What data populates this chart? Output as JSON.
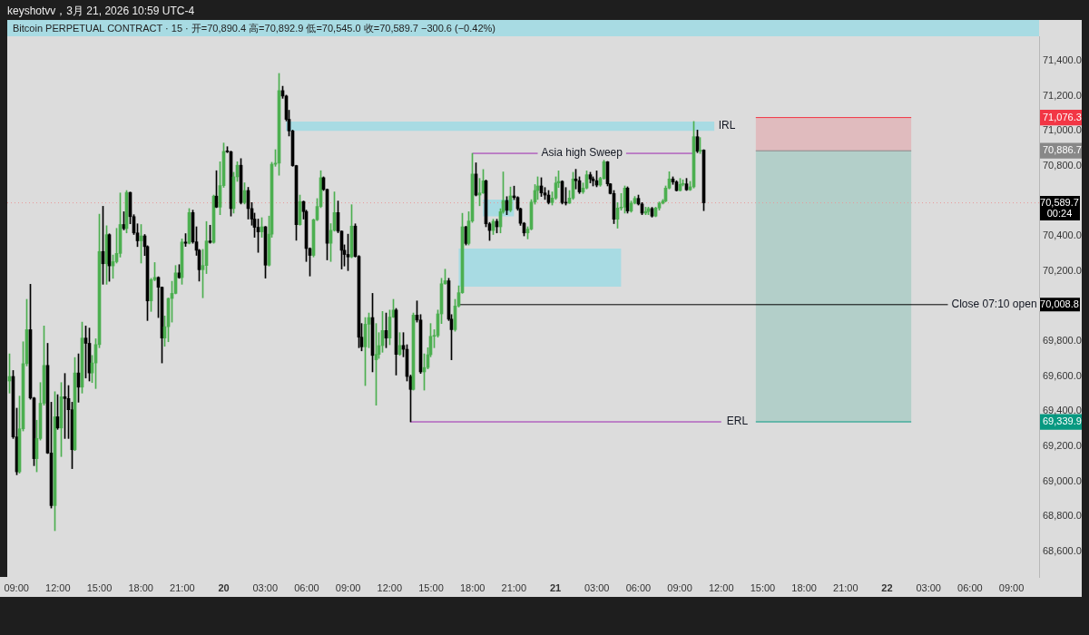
{
  "chart_data": {
    "type": "candlestick",
    "title": "Bitcoin PERPETUAL CONTRACT · 15 · 开=70,890.4  高=70,892.9  低=70,545.0  收=70,589.7  −300.6 (−0.42%)",
    "subtitle": "keyshotvv，3月 21, 2026 10:59 UTC-4",
    "x": [
      "2026-03-19T08:30",
      "2026-03-19T08:45",
      "2026-03-19T09:00",
      "2026-03-19T09:15",
      "2026-03-19T09:30",
      "2026-03-19T09:45",
      "2026-03-19T10:00",
      "2026-03-19T10:15",
      "2026-03-19T10:30",
      "2026-03-19T10:45",
      "2026-03-19T11:00",
      "2026-03-19T11:15",
      "2026-03-19T11:30",
      "2026-03-19T11:45",
      "2026-03-19T12:00",
      "2026-03-19T12:15",
      "2026-03-19T12:30",
      "2026-03-19T12:45",
      "2026-03-19T13:00",
      "2026-03-19T13:15",
      "2026-03-19T13:30",
      "2026-03-19T13:45",
      "2026-03-19T14:00",
      "2026-03-19T14:15",
      "2026-03-19T14:30",
      "2026-03-19T14:45",
      "2026-03-19T15:00",
      "2026-03-19T15:15",
      "2026-03-19T15:30",
      "2026-03-19T15:45",
      "2026-03-19T16:00",
      "2026-03-19T16:15",
      "2026-03-19T16:30",
      "2026-03-19T16:45",
      "2026-03-19T17:00",
      "2026-03-19T17:15",
      "2026-03-19T17:30",
      "2026-03-19T17:45",
      "2026-03-19T18:00",
      "2026-03-19T18:15",
      "2026-03-19T18:30",
      "2026-03-19T18:45",
      "2026-03-19T19:00",
      "2026-03-19T19:15",
      "2026-03-19T19:30",
      "2026-03-19T19:45",
      "2026-03-19T20:00",
      "2026-03-19T20:15",
      "2026-03-19T20:30",
      "2026-03-19T20:45",
      "2026-03-19T21:00",
      "2026-03-19T21:15",
      "2026-03-19T21:30",
      "2026-03-19T21:45",
      "2026-03-19T22:00",
      "2026-03-19T22:15",
      "2026-03-19T22:30",
      "2026-03-19T22:45",
      "2026-03-19T23:00",
      "2026-03-19T23:15",
      "2026-03-19T23:30",
      "2026-03-19T23:45",
      "2026-03-20T00:00",
      "2026-03-20T00:15",
      "2026-03-20T00:30",
      "2026-03-20T00:45",
      "2026-03-20T01:00",
      "2026-03-20T01:15",
      "2026-03-20T01:30",
      "2026-03-20T01:45",
      "2026-03-20T02:00",
      "2026-03-20T02:15",
      "2026-03-20T02:30",
      "2026-03-20T02:45",
      "2026-03-20T03:00",
      "2026-03-20T03:15",
      "2026-03-20T03:30",
      "2026-03-20T03:45",
      "2026-03-20T04:00",
      "2026-03-20T04:15",
      "2026-03-20T04:30",
      "2026-03-20T04:45",
      "2026-03-20T05:00",
      "2026-03-20T05:15",
      "2026-03-20T05:30",
      "2026-03-20T05:45",
      "2026-03-20T06:00",
      "2026-03-20T06:15",
      "2026-03-20T06:30",
      "2026-03-20T06:45",
      "2026-03-20T07:00",
      "2026-03-20T07:15",
      "2026-03-20T07:30",
      "2026-03-20T07:45",
      "2026-03-20T08:00",
      "2026-03-20T08:15",
      "2026-03-20T08:30",
      "2026-03-20T08:45",
      "2026-03-20T09:00",
      "2026-03-20T09:15",
      "2026-03-20T09:30",
      "2026-03-20T09:45",
      "2026-03-20T10:00",
      "2026-03-20T10:15",
      "2026-03-20T10:30",
      "2026-03-20T10:45",
      "2026-03-20T11:00",
      "2026-03-20T11:15",
      "2026-03-20T11:30",
      "2026-03-20T11:45",
      "2026-03-20T12:00",
      "2026-03-20T12:15",
      "2026-03-20T12:30",
      "2026-03-20T12:45",
      "2026-03-20T13:00",
      "2026-03-20T13:15",
      "2026-03-20T13:30",
      "2026-03-20T13:45",
      "2026-03-20T14:00",
      "2026-03-20T14:15",
      "2026-03-20T14:30",
      "2026-03-20T14:45",
      "2026-03-20T15:00",
      "2026-03-20T15:15",
      "2026-03-20T15:30",
      "2026-03-20T15:45",
      "2026-03-20T16:00",
      "2026-03-20T16:15",
      "2026-03-20T16:30",
      "2026-03-20T16:45",
      "2026-03-20T17:00",
      "2026-03-20T17:15",
      "2026-03-20T17:30",
      "2026-03-20T17:45",
      "2026-03-20T18:00",
      "2026-03-20T18:15",
      "2026-03-20T18:30",
      "2026-03-20T18:45",
      "2026-03-20T19:00",
      "2026-03-20T19:15",
      "2026-03-20T19:30",
      "2026-03-20T19:45",
      "2026-03-20T20:00",
      "2026-03-20T20:15",
      "2026-03-20T20:30",
      "2026-03-20T20:45",
      "2026-03-20T21:00",
      "2026-03-20T21:15",
      "2026-03-20T21:30",
      "2026-03-20T21:45",
      "2026-03-20T22:00",
      "2026-03-20T22:15",
      "2026-03-20T22:30",
      "2026-03-20T22:45",
      "2026-03-20T23:00",
      "2026-03-20T23:15",
      "2026-03-20T23:30",
      "2026-03-20T23:45",
      "2026-03-21T00:00",
      "2026-03-21T00:15",
      "2026-03-21T00:30",
      "2026-03-21T00:45",
      "2026-03-21T01:00",
      "2026-03-21T01:15",
      "2026-03-21T01:30",
      "2026-03-21T01:45",
      "2026-03-21T02:00",
      "2026-03-21T02:15",
      "2026-03-21T02:30",
      "2026-03-21T02:45",
      "2026-03-21T03:00",
      "2026-03-21T03:15",
      "2026-03-21T03:30",
      "2026-03-21T03:45",
      "2026-03-21T04:00",
      "2026-03-21T04:15",
      "2026-03-21T04:30",
      "2026-03-21T04:45",
      "2026-03-21T05:00",
      "2026-03-21T05:15",
      "2026-03-21T05:30",
      "2026-03-21T05:45",
      "2026-03-21T06:00",
      "2026-03-21T06:15",
      "2026-03-21T06:30",
      "2026-03-21T06:45",
      "2026-03-21T07:00",
      "2026-03-21T07:15",
      "2026-03-21T07:30",
      "2026-03-21T07:45",
      "2026-03-21T08:00",
      "2026-03-21T08:15",
      "2026-03-21T08:30",
      "2026-03-21T08:45",
      "2026-03-21T09:00",
      "2026-03-21T09:15",
      "2026-03-21T09:30",
      "2026-03-21T09:45",
      "2026-03-21T10:00",
      "2026-03-21T10:15",
      "2026-03-21T10:30",
      "2026-03-21T10:45"
    ],
    "ohlc": [
      [
        69573,
        69728,
        69504,
        69599
      ],
      [
        69599,
        69633,
        69245,
        69254
      ],
      [
        69254,
        69418,
        69038,
        69055
      ],
      [
        69055,
        69487,
        69047,
        69300
      ],
      [
        69300,
        69797,
        69288,
        69672
      ],
      [
        69672,
        70039,
        69659,
        69866
      ],
      [
        69866,
        70125,
        69469,
        69476
      ],
      [
        69476,
        69480,
        69090,
        69130
      ],
      [
        69130,
        69349,
        69055,
        69245
      ],
      [
        69245,
        69564,
        69236,
        69446
      ],
      [
        69446,
        69887,
        69435,
        69662
      ],
      [
        69662,
        69788,
        69159,
        69162
      ],
      [
        69162,
        69452,
        68848,
        68862
      ],
      [
        68862,
        69512,
        68719,
        69369
      ],
      [
        69369,
        69495,
        69297,
        69305
      ],
      [
        69305,
        69564,
        69142,
        69483
      ],
      [
        69483,
        69616,
        69245,
        69473
      ],
      [
        69473,
        69547,
        69245,
        69409
      ],
      [
        69409,
        69452,
        69073,
        69181
      ],
      [
        69181,
        69707,
        69176,
        69619
      ],
      [
        69619,
        69728,
        69452,
        69538
      ],
      [
        69538,
        69909,
        69504,
        69818
      ],
      [
        69818,
        69887,
        69590,
        69788
      ],
      [
        69788,
        69875,
        69573,
        69619
      ],
      [
        69619,
        69719,
        69564,
        69676
      ],
      [
        69676,
        69814,
        69530,
        69781
      ],
      [
        69781,
        70525,
        69763,
        70312
      ],
      [
        70312,
        70570,
        70125,
        70242
      ],
      [
        70242,
        70459,
        70125,
        70408
      ],
      [
        70408,
        70413,
        70142,
        70230
      ],
      [
        70230,
        70292,
        70159,
        70254
      ],
      [
        70254,
        70444,
        70246,
        70301
      ],
      [
        70301,
        70646,
        70280,
        70466
      ],
      [
        70466,
        70539,
        70435,
        70443
      ],
      [
        70443,
        70660,
        70418,
        70649
      ],
      [
        70649,
        70651,
        70470,
        70511
      ],
      [
        70511,
        70522,
        70409,
        70418
      ],
      [
        70418,
        70470,
        70340,
        70373
      ],
      [
        70373,
        70466,
        70246,
        70401
      ],
      [
        70401,
        70409,
        70289,
        70340
      ],
      [
        70340,
        70345,
        69918,
        70030
      ],
      [
        70030,
        70159,
        69970,
        70151
      ],
      [
        70151,
        70249,
        70145,
        70164
      ],
      [
        70164,
        70168,
        69935,
        70108
      ],
      [
        70108,
        70110,
        69676,
        69818
      ],
      [
        69818,
        69944,
        69771,
        69883
      ],
      [
        69883,
        70047,
        69797,
        70044
      ],
      [
        70044,
        70142,
        69909,
        70073
      ],
      [
        70073,
        70232,
        70070,
        70190
      ],
      [
        70190,
        70237,
        70159,
        70163
      ],
      [
        70163,
        70384,
        70125,
        70366
      ],
      [
        70366,
        70414,
        70341,
        70359
      ],
      [
        70359,
        70557,
        70355,
        70534
      ],
      [
        70534,
        70548,
        70359,
        70367
      ],
      [
        70367,
        70453,
        70290,
        70319
      ],
      [
        70319,
        70324,
        70143,
        70208
      ],
      [
        70208,
        70324,
        70048,
        70232
      ],
      [
        70232,
        70483,
        70186,
        70372
      ],
      [
        70372,
        70462,
        70359,
        70364
      ],
      [
        70364,
        70634,
        70359,
        70628
      ],
      [
        70628,
        70773,
        70562,
        70565
      ],
      [
        70565,
        70824,
        70522,
        70688
      ],
      [
        70688,
        70931,
        70678,
        70883
      ],
      [
        70883,
        70910,
        70876,
        70881
      ],
      [
        70881,
        70885,
        70514,
        70557
      ],
      [
        70557,
        70764,
        70531,
        70738
      ],
      [
        70738,
        70824,
        70712,
        70804
      ],
      [
        70804,
        70842,
        70583,
        70591
      ],
      [
        70591,
        70704,
        70583,
        70660
      ],
      [
        70660,
        70678,
        70497,
        70557
      ],
      [
        70557,
        70591,
        70462,
        70497
      ],
      [
        70497,
        70531,
        70393,
        70450
      ],
      [
        70450,
        70497,
        70307,
        70424
      ],
      [
        70424,
        70505,
        70393,
        70453
      ],
      [
        70453,
        70455,
        70160,
        70234
      ],
      [
        70234,
        70514,
        70229,
        70411
      ],
      [
        70411,
        70821,
        70393,
        70810
      ],
      [
        70810,
        70893,
        70798,
        70816
      ],
      [
        70816,
        71328,
        70747,
        71230
      ],
      [
        71230,
        71255,
        71186,
        71199
      ],
      [
        71199,
        71204,
        71057,
        71066
      ],
      [
        71066,
        71118,
        70971,
        71000
      ],
      [
        71000,
        71005,
        70798,
        70802
      ],
      [
        70802,
        70804,
        70376,
        70465
      ],
      [
        70465,
        70634,
        70462,
        70597
      ],
      [
        70597,
        70600,
        70497,
        70540
      ],
      [
        70540,
        70548,
        70255,
        70329
      ],
      [
        70329,
        70333,
        70172,
        70290
      ],
      [
        70290,
        70497,
        70281,
        70493
      ],
      [
        70493,
        70614,
        70488,
        70569
      ],
      [
        70569,
        70773,
        70562,
        70733
      ],
      [
        70733,
        70738,
        70660,
        70666
      ],
      [
        70666,
        70669,
        70264,
        70359
      ],
      [
        70359,
        70471,
        70255,
        70433
      ],
      [
        70433,
        70652,
        70428,
        70534
      ],
      [
        70534,
        70600,
        70419,
        70428
      ],
      [
        70428,
        70430,
        70212,
        70319
      ],
      [
        70319,
        70350,
        70229,
        70295
      ],
      [
        70295,
        70411,
        70203,
        70281
      ],
      [
        70281,
        70579,
        70276,
        70457
      ],
      [
        70457,
        70470,
        70280,
        70284
      ],
      [
        70284,
        70289,
        69763,
        69823
      ],
      [
        69823,
        69901,
        69745,
        69768
      ],
      [
        69768,
        69935,
        69547,
        69897
      ],
      [
        69897,
        69961,
        69763,
        69935
      ],
      [
        69935,
        70073,
        69625,
        69719
      ],
      [
        69694,
        69901,
        69435,
        69725
      ],
      [
        69725,
        69849,
        69702,
        69775
      ],
      [
        69775,
        69970,
        69737,
        69861
      ],
      [
        69861,
        69961,
        69763,
        69818
      ],
      [
        69818,
        69978,
        69780,
        69938
      ],
      [
        69938,
        70039,
        69935,
        69978
      ],
      [
        69978,
        69987,
        69607,
        69725
      ],
      [
        69725,
        69849,
        69719,
        69776
      ],
      [
        69776,
        69849,
        69711,
        69754
      ],
      [
        69754,
        69780,
        69573,
        69599
      ],
      [
        69599,
        69607,
        69340,
        69525
      ],
      [
        69525,
        69961,
        69521,
        69949
      ],
      [
        69949,
        70030,
        69909,
        69921
      ],
      [
        69921,
        69952,
        69616,
        69625
      ],
      [
        69625,
        69728,
        69521,
        69650
      ],
      [
        69650,
        69763,
        69642,
        69723
      ],
      [
        69723,
        69901,
        69711,
        69828
      ],
      [
        69828,
        69866,
        69763,
        69832
      ],
      [
        69832,
        69978,
        69823,
        69956
      ],
      [
        69956,
        70159,
        69901,
        70128
      ],
      [
        70128,
        70211,
        70125,
        70145
      ],
      [
        70145,
        70159,
        69918,
        69926
      ],
      [
        69926,
        69952,
        69694,
        69866
      ],
      [
        69866,
        70039,
        69857,
        70001
      ],
      [
        70001,
        70116,
        69995,
        70077
      ],
      [
        70077,
        70530,
        70073,
        70453
      ],
      [
        70453,
        70456,
        70349,
        70358
      ],
      [
        70358,
        70539,
        70349,
        70486
      ],
      [
        70486,
        70872,
        70478,
        70754
      ],
      [
        70754,
        70818,
        70629,
        70634
      ],
      [
        70634,
        70729,
        70573,
        70646
      ],
      [
        70646,
        70780,
        70643,
        70715
      ],
      [
        70715,
        70720,
        70453,
        70470
      ],
      [
        70470,
        70478,
        70375,
        70432
      ],
      [
        70432,
        70496,
        70409,
        70484
      ],
      [
        70484,
        70496,
        70418,
        70453
      ],
      [
        70453,
        70556,
        70418,
        70539
      ],
      [
        70539,
        70766,
        70530,
        70603
      ],
      [
        70603,
        70625,
        70522,
        70547
      ],
      [
        70547,
        70680,
        70539,
        70629
      ],
      [
        70629,
        70685,
        70608,
        70620
      ],
      [
        70620,
        70625,
        70547,
        70556
      ],
      [
        70556,
        70560,
        70461,
        70473
      ],
      [
        70473,
        70478,
        70401,
        70418
      ],
      [
        70418,
        70453,
        70384,
        70440
      ],
      [
        70440,
        70608,
        70435,
        70594
      ],
      [
        70594,
        70694,
        70582,
        70660
      ],
      [
        70660,
        70738,
        70609,
        70686
      ],
      [
        70686,
        70733,
        70626,
        70646
      ],
      [
        70646,
        70677,
        70609,
        70634
      ],
      [
        70634,
        70660,
        70583,
        70591
      ],
      [
        70591,
        70652,
        70577,
        70617
      ],
      [
        70617,
        70738,
        70609,
        70703
      ],
      [
        70703,
        70772,
        70677,
        70712
      ],
      [
        70712,
        70716,
        70583,
        70591
      ],
      [
        70591,
        70677,
        70577,
        70588
      ],
      [
        70588,
        70660,
        70586,
        70617
      ],
      [
        70617,
        70764,
        70609,
        70726
      ],
      [
        70726,
        70781,
        70669,
        70716
      ],
      [
        70716,
        70738,
        70643,
        70652
      ],
      [
        70652,
        70703,
        70643,
        70674
      ],
      [
        70674,
        70772,
        70669,
        70750
      ],
      [
        70750,
        70764,
        70703,
        70726
      ],
      [
        70726,
        70738,
        70686,
        70716
      ],
      [
        70716,
        70772,
        70681,
        70691
      ],
      [
        70691,
        70736,
        70684,
        70729
      ],
      [
        70729,
        70833,
        70724,
        70824
      ],
      [
        70824,
        70826,
        70686,
        70698
      ],
      [
        70698,
        70700,
        70640,
        70643
      ],
      [
        70643,
        70660,
        70471,
        70496
      ],
      [
        70496,
        70591,
        70445,
        70560
      ],
      [
        70560,
        70643,
        70548,
        70565
      ],
      [
        70565,
        70686,
        70531,
        70674
      ],
      [
        70674,
        70681,
        70531,
        70543
      ],
      [
        70543,
        70600,
        70536,
        70588
      ],
      [
        70588,
        70626,
        70583,
        70615
      ],
      [
        70615,
        70634,
        70577,
        70583
      ],
      [
        70583,
        70591,
        70522,
        70531
      ],
      [
        70531,
        70565,
        70522,
        70540
      ],
      [
        70540,
        70565,
        70522,
        70557
      ],
      [
        70557,
        70564,
        70508,
        70514
      ],
      [
        70514,
        70565,
        70510,
        70560
      ],
      [
        70560,
        70595,
        70548,
        70588
      ],
      [
        70588,
        70609,
        70583,
        70600
      ],
      [
        70600,
        70686,
        70595,
        70674
      ],
      [
        70674,
        70767,
        70669,
        70726
      ],
      [
        70726,
        70738,
        70695,
        70709
      ],
      [
        70709,
        70716,
        70657,
        70660
      ],
      [
        70660,
        70729,
        70657,
        70695
      ],
      [
        70695,
        70721,
        70686,
        70698
      ],
      [
        70698,
        70729,
        70660,
        70664
      ],
      [
        70664,
        70712,
        70660,
        70681
      ],
      [
        70681,
        71054,
        70674,
        70967
      ],
      [
        70967,
        71005,
        70876,
        70884
      ],
      [
        70884,
        70962,
        70871,
        70890.4
      ],
      [
        70890.4,
        70892.9,
        70545.0,
        70589.7
      ]
    ],
    "colors": [
      "#4caf50",
      "#000000",
      "#000000",
      "#4caf50",
      "#4caf50",
      "#4caf50",
      "#000000",
      "#000000",
      "#4caf50",
      "#4caf50",
      "#4caf50",
      "#000000",
      "#000000",
      "#4caf50",
      "#000000",
      "#4caf50",
      "#000000",
      "#000000",
      "#000000",
      "#4caf50",
      "#000000",
      "#4caf50",
      "#000000",
      "#000000",
      "#4caf50",
      "#4caf50",
      "#4caf50",
      "#000000",
      "#4caf50",
      "#000000",
      "#4caf50",
      "#4caf50",
      "#4caf50",
      "#000000",
      "#4caf50",
      "#000000",
      "#000000",
      "#000000",
      "#4caf50",
      "#000000",
      "#000000",
      "#4caf50",
      "#4caf50",
      "#000000",
      "#000000",
      "#4caf50",
      "#4caf50",
      "#4caf50",
      "#4caf50",
      "#000000",
      "#4caf50",
      "#000000",
      "#4caf50",
      "#000000",
      "#000000",
      "#000000",
      "#4caf50",
      "#4caf50",
      "#000000",
      "#4caf50",
      "#000000",
      "#4caf50",
      "#4caf50",
      "#000000",
      "#000000",
      "#4caf50",
      "#4caf50",
      "#000000",
      "#4caf50",
      "#000000",
      "#000000",
      "#000000",
      "#000000",
      "#4caf50",
      "#000000",
      "#4caf50",
      "#4caf50",
      "#4caf50",
      "#4caf50",
      "#000000",
      "#000000",
      "#000000",
      "#000000",
      "#000000",
      "#4caf50",
      "#000000",
      "#000000",
      "#000000",
      "#4caf50",
      "#4caf50",
      "#4caf50",
      "#000000",
      "#000000",
      "#4caf50",
      "#4caf50",
      "#000000",
      "#000000",
      "#000000",
      "#000000",
      "#4caf50",
      "#000000",
      "#000000",
      "#000000",
      "#4caf50",
      "#4caf50",
      "#000000",
      "#4caf50",
      "#4caf50",
      "#4caf50",
      "#000000",
      "#4caf50",
      "#4caf50",
      "#000000",
      "#4caf50",
      "#000000",
      "#000000",
      "#000000",
      "#4caf50",
      "#000000",
      "#000000",
      "#4caf50",
      "#4caf50",
      "#4caf50",
      "#4caf50",
      "#4caf50",
      "#4caf50",
      "#4caf50",
      "#000000",
      "#000000",
      "#4caf50",
      "#4caf50",
      "#4caf50",
      "#000000",
      "#4caf50",
      "#4caf50",
      "#000000",
      "#4caf50",
      "#4caf50",
      "#000000",
      "#000000",
      "#4caf50",
      "#000000",
      "#4caf50",
      "#4caf50",
      "#000000",
      "#4caf50",
      "#000000",
      "#000000",
      "#000000",
      "#000000",
      "#4caf50",
      "#4caf50",
      "#4caf50",
      "#4caf50",
      "#000000",
      "#000000",
      "#000000",
      "#4caf50",
      "#4caf50",
      "#4caf50",
      "#000000",
      "#000000",
      "#4caf50",
      "#4caf50",
      "#000000",
      "#000000",
      "#4caf50",
      "#4caf50",
      "#000000",
      "#000000",
      "#000000",
      "#4caf50",
      "#4caf50",
      "#000000",
      "#000000",
      "#000000",
      "#4caf50",
      "#4caf50",
      "#4caf50",
      "#000000",
      "#4caf50",
      "#4caf50",
      "#000000",
      "#000000",
      "#4caf50",
      "#4caf50",
      "#000000",
      "#4caf50",
      "#4caf50",
      "#4caf50",
      "#4caf50",
      "#4caf50",
      "#000000",
      "#000000",
      "#4caf50",
      "#4caf50",
      "#000000",
      "#4caf50",
      "#4caf50",
      "#000000",
      "#4caf50",
      "#000000"
    ],
    "series": [
      {
        "type": "line",
        "x": [
          "2026-03-20T04:30",
          "2026-03-21T11:30"
        ],
        "values": [
          null,
          null
        ],
        "lower": [
          71001,
          71001
        ],
        "upper": [
          71053,
          71053
        ],
        "color": "#a8dbe3"
      },
      {
        "type": "line",
        "x": [
          "2026-03-20T17:00",
          "2026-03-21T04:45"
        ],
        "values": [
          null,
          null
        ],
        "lower": [
          70111,
          70111
        ],
        "upper": [
          70329,
          70329
        ],
        "color": "#a8dbe3"
      },
      {
        "type": "line",
        "x": [
          "2026-03-20T18:45",
          "2026-03-20T21:00"
        ],
        "values": [
          null,
          null
        ],
        "lower": [
          70513,
          70513
        ],
        "upper": [
          70608,
          70608
        ],
        "color": "#a8dbe3"
      },
      {
        "type": "line",
        "x": [
          "2026-03-21T14:30",
          "2026-03-22T01:45"
        ],
        "values": [
          null,
          null
        ],
        "lower": [
          70886.7,
          70886.7
        ],
        "upper": [
          71076.3,
          71076.3
        ],
        "color": "#e0bbbe"
      },
      {
        "type": "line",
        "x": [
          "2026-03-21T14:30",
          "2026-03-22T01:45"
        ],
        "values": [
          null,
          null
        ],
        "lower": [
          69339.9,
          69339.9
        ],
        "upper": [
          70886.7,
          70886.7
        ],
        "color": "#b3cfc9"
      },
      {
        "type": "line",
        "x": [
          "2026-03-20T18:00",
          "2026-03-21T10:00"
        ],
        "values": [
          70872,
          70872
        ],
        "color": "#9c27b0"
      },
      {
        "type": "line",
        "x": [
          "2026-03-20T17:00",
          "2026-03-22T11:00"
        ],
        "values": [
          70008.8,
          70008.8
        ],
        "value_labels": [
          null,
          "70,008.8"
        ],
        "color": "#000000"
      },
      {
        "type": "line",
        "x": [
          "2026-03-20T13:30",
          "2026-03-21T12:00"
        ],
        "values": [
          69340,
          69340
        ],
        "color": "#9c27b0"
      },
      {
        "type": "line",
        "x": [
          "2026-03-21T14:30",
          "2026-03-22T01:45"
        ],
        "values": [
          71076.3,
          71076.3
        ],
        "color": "#f23645"
      },
      {
        "type": "line",
        "x": [
          "2026-03-21T14:30",
          "2026-03-22T01:45"
        ],
        "values": [
          70886.7,
          70886.7
        ],
        "color": "#888888"
      },
      {
        "type": "line",
        "x": [
          "2026-03-21T14:30",
          "2026-03-22T01:45"
        ],
        "values": [
          69339.9,
          69339.9
        ],
        "color": "#089981"
      }
    ],
    "ref_lines": [
      {
        "axis": "y",
        "value": 70589.7,
        "label": "70,589.7",
        "color": "#e89a9a",
        "line_style": "dotted"
      }
    ],
    "annotations": [
      {
        "text": "IRL",
        "x": "2026-03-21T12:25",
        "y": 71027
      },
      {
        "text": "Asia high Sweep",
        "x": "2026-03-21T01:55",
        "y": 70872
      },
      {
        "text": "Close 07:10 open",
        "x": "2026-03-22T07:45",
        "y": 70008.8
      },
      {
        "text": "ERL",
        "x": "2026-03-21T13:10",
        "y": 69340
      },
      "00:24"
    ],
    "xlim": [
      "2026-03-19T08:20",
      "2026-03-22T11:00"
    ],
    "xticks": [
      {
        "value": "2026-03-19T09:00",
        "label": "09:00"
      },
      {
        "value": "2026-03-19T12:00",
        "label": "12:00"
      },
      {
        "value": "2026-03-19T15:00",
        "label": "15:00"
      },
      {
        "value": "2026-03-19T18:00",
        "label": "18:00"
      },
      {
        "value": "2026-03-19T21:00",
        "label": "21:00"
      },
      {
        "value": "2026-03-20T00:00",
        "label": "20"
      },
      {
        "value": "2026-03-20T03:00",
        "label": "03:00"
      },
      {
        "value": "2026-03-20T06:00",
        "label": "06:00"
      },
      {
        "value": "2026-03-20T09:00",
        "label": "09:00"
      },
      {
        "value": "2026-03-20T12:00",
        "label": "12:00"
      },
      {
        "value": "2026-03-20T15:00",
        "label": "15:00"
      },
      {
        "value": "2026-03-20T18:00",
        "label": "18:00"
      },
      {
        "value": "2026-03-20T21:00",
        "label": "21:00"
      },
      {
        "value": "2026-03-21T00:00",
        "label": "21"
      },
      {
        "value": "2026-03-21T03:00",
        "label": "03:00"
      },
      {
        "value": "2026-03-21T06:00",
        "label": "06:00"
      },
      {
        "value": "2026-03-21T09:00",
        "label": "09:00"
      },
      {
        "value": "2026-03-21T12:00",
        "label": "12:00"
      },
      {
        "value": "2026-03-21T15:00",
        "label": "15:00"
      },
      {
        "value": "2026-03-21T18:00",
        "label": "18:00"
      },
      {
        "value": "2026-03-21T21:00",
        "label": "21:00"
      },
      {
        "value": "2026-03-22T00:00",
        "label": "22"
      },
      {
        "value": "2026-03-22T03:00",
        "label": "03:00"
      },
      {
        "value": "2026-03-22T06:00",
        "label": "06:00"
      },
      {
        "value": "2026-03-22T09:00",
        "label": "09:00"
      }
    ],
    "ylim": [
      68455,
      71540
    ],
    "yticks": [
      {
        "value": 68600,
        "label": "68,600.0"
      },
      {
        "value": 68800,
        "label": "68,800.0"
      },
      {
        "value": 69000,
        "label": "69,000.0"
      },
      {
        "value": 69200,
        "label": "69,200.0"
      },
      {
        "value": 69339.9,
        "label": "69,339.9"
      },
      {
        "value": 69400,
        "label": "69,400.0"
      },
      {
        "value": 69600,
        "label": "69,600.0"
      },
      {
        "value": 69800,
        "label": "69,800.0"
      },
      {
        "value": 70200,
        "label": "70,200.0"
      },
      {
        "value": 70400,
        "label": "70,400.0"
      },
      {
        "value": 70800,
        "label": "70,800.0"
      },
      {
        "value": 70886.7,
        "label": "70,886.7"
      },
      {
        "value": 71000,
        "label": "71,000.0"
      },
      {
        "value": 71076.3,
        "label": "71,076.3"
      },
      {
        "value": 71200,
        "label": "71,200.0"
      },
      {
        "value": 71400,
        "label": "71,400.0"
      }
    ]
  }
}
